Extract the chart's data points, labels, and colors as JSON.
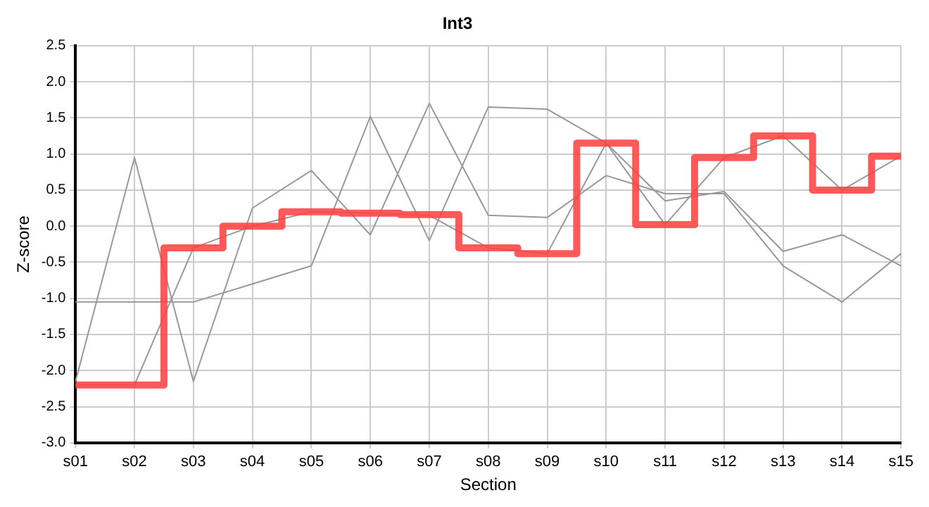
{
  "chart_data": {
    "type": "line",
    "title": "Int3",
    "xlabel": "Section",
    "ylabel": "Z-score",
    "categories": [
      "s01",
      "s02",
      "s03",
      "s04",
      "s05",
      "s06",
      "s07",
      "s08",
      "s09",
      "s10",
      "s11",
      "s12",
      "s13",
      "s14",
      "s15"
    ],
    "ylim": [
      -3.0,
      2.5
    ],
    "yticks": [
      {
        "value": -3,
        "label": "-3.0"
      },
      {
        "value": -2.5,
        "label": "-2.5"
      },
      {
        "value": -2,
        "label": "-2.0"
      },
      {
        "value": -1.5,
        "label": "-1.5"
      },
      {
        "value": -1,
        "label": "-1.0"
      },
      {
        "value": -0.5,
        "label": "-0.5"
      },
      {
        "value": 0,
        "label": "0.0"
      },
      {
        "value": 0.5,
        "label": "0.5"
      },
      {
        "value": 1,
        "label": "1.0"
      },
      {
        "value": 1.5,
        "label": "1.5"
      },
      {
        "value": 2,
        "label": "2.0"
      },
      {
        "value": 2.5,
        "label": "2.5"
      }
    ],
    "grid": true,
    "legend": false,
    "marker": "none",
    "series": [
      {
        "type": "line",
        "color": "#999999",
        "values": [
          -2.15,
          0.95,
          -2.15,
          0.25,
          0.77,
          -0.12,
          1.7,
          0.15,
          0.12,
          0.7,
          0.45,
          0.45,
          -0.55,
          -1.05,
          -0.38
        ]
      },
      {
        "type": "line",
        "color": "#999999",
        "values": [
          -1.05,
          -1.05,
          -1.05,
          -0.8,
          -0.55,
          1.52,
          -0.2,
          1.65,
          1.62,
          1.15,
          0.35,
          0.48,
          -0.35,
          -0.12,
          -0.55
        ]
      },
      {
        "type": "line",
        "color": "#999999",
        "values": [
          -2.2,
          -2.2,
          -0.3,
          0.0,
          0.2,
          0.18,
          0.15,
          -0.3,
          -0.38,
          1.15,
          0.02,
          0.95,
          1.25,
          0.5,
          0.97
        ]
      },
      {
        "type": "step",
        "color": "#ff4040",
        "values": [
          -2.2,
          -2.2,
          -0.3,
          0.0,
          0.2,
          0.18,
          0.16,
          -0.3,
          -0.38,
          1.15,
          0.02,
          0.95,
          1.25,
          0.5,
          0.97
        ]
      }
    ]
  }
}
